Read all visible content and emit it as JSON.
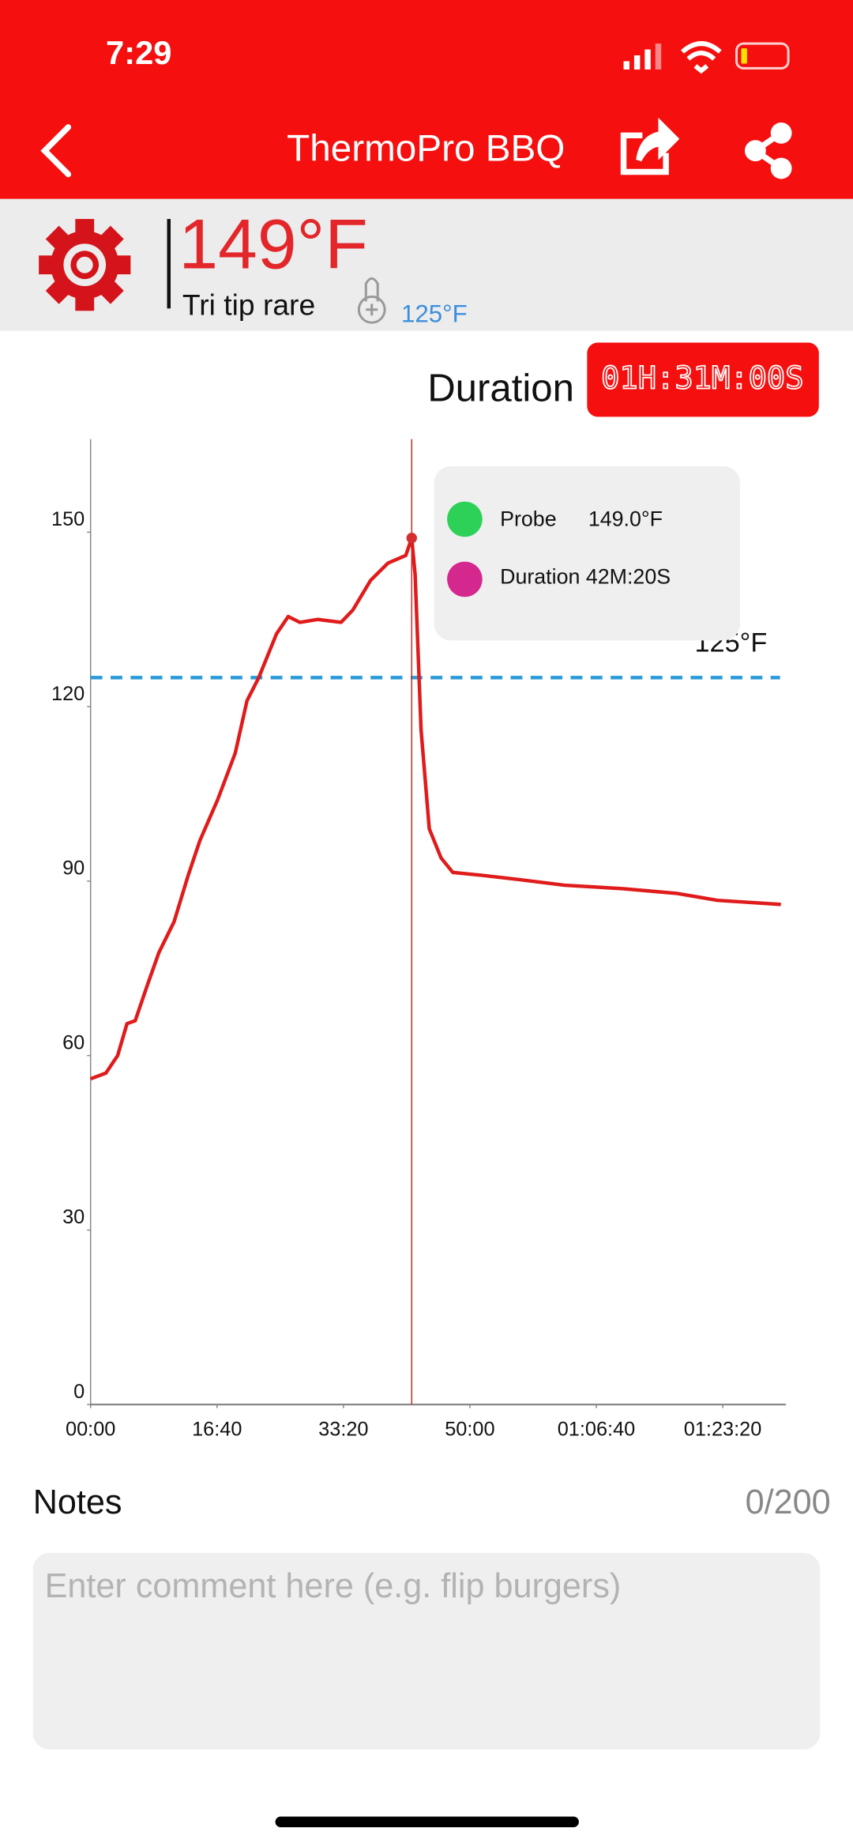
{
  "status_bar": {
    "time": "7:29"
  },
  "header": {
    "title": "ThermoPro BBQ"
  },
  "probe": {
    "temperature": "149°F",
    "name": "Tri tip rare",
    "target": "125°F"
  },
  "duration": {
    "label": "Duration",
    "timer": "01H:31M:00S"
  },
  "chart_data": {
    "type": "line",
    "x": [
      0,
      121,
      214,
      288,
      353,
      447,
      540,
      660,
      772,
      865,
      1005,
      1144,
      1237,
      1330,
      1470,
      1563,
      1656,
      1795,
      1981,
      2074,
      2214,
      2353,
      2493,
      2540,
      2567,
      2614,
      2679,
      2772,
      2865,
      3098,
      3377,
      3749,
      4214,
      4633,
      4958,
      5460
    ],
    "series": [
      {
        "name": "Probe",
        "color": "#e01b1b",
        "values": [
          56,
          57,
          60,
          65.5,
          66,
          72,
          77.7,
          83,
          91,
          97,
          104,
          112,
          121,
          125,
          132.5,
          135.5,
          134.5,
          135,
          134.5,
          136.6,
          141.7,
          144.7,
          146,
          149,
          142.7,
          116,
          99,
          94,
          91.5,
          91,
          90.3,
          89.3,
          88.7,
          87.9,
          86.7,
          86
        ]
      }
    ],
    "xlim": [
      0,
      5500
    ],
    "ylim": [
      0,
      166
    ],
    "xticks": [
      {
        "value": 0,
        "label": "00:00"
      },
      {
        "value": 1000,
        "label": "16:40"
      },
      {
        "value": 2000,
        "label": "33:20"
      },
      {
        "value": 3000,
        "label": "50:00"
      },
      {
        "value": 4000,
        "label": "01:06:40"
      },
      {
        "value": 5000,
        "label": "01:23:20"
      }
    ],
    "yticks": [
      0,
      30,
      60,
      90,
      120,
      150
    ],
    "target": {
      "value": 125,
      "label": "125°F",
      "color": "#2a9ad8"
    },
    "tooltip": {
      "probe_value": "149.0°F",
      "probe_color": "#2ed158",
      "duration_label": "Duration",
      "duration_value": "42M:20S",
      "duration_color": "#d4288f"
    }
  },
  "notes": {
    "title": "Notes",
    "counter": "0/200",
    "placeholder": "Enter comment here (e.g. flip burgers)"
  }
}
